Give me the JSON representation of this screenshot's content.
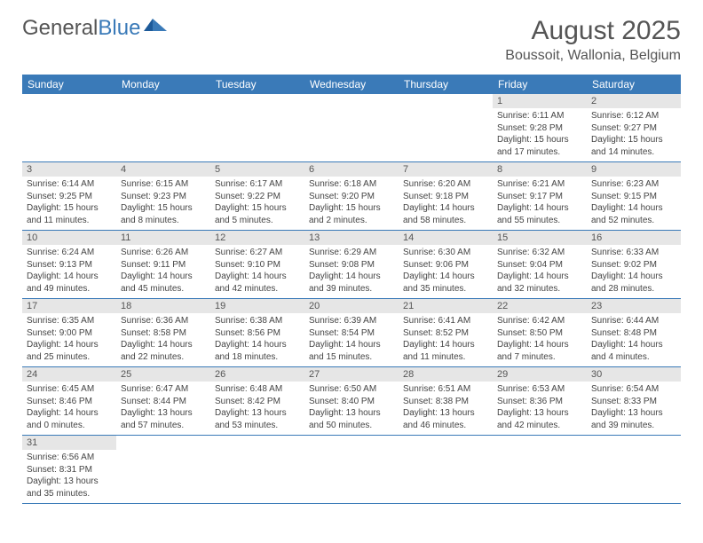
{
  "brand": {
    "part1": "General",
    "part2": "Blue"
  },
  "title": "August 2025",
  "location": "Boussoit, Wallonia, Belgium",
  "colors": {
    "header_bg": "#3a7ab8",
    "daynum_bg": "#e6e6e6",
    "text": "#555555",
    "row_border": "#3a7ab8"
  },
  "typography": {
    "month_title_fontsize": 30,
    "location_fontsize": 16,
    "day_header_fontsize": 12,
    "cell_fontsize": 10
  },
  "day_headers": [
    "Sunday",
    "Monday",
    "Tuesday",
    "Wednesday",
    "Thursday",
    "Friday",
    "Saturday"
  ],
  "weeks": [
    [
      null,
      null,
      null,
      null,
      null,
      {
        "n": "1",
        "sunrise": "Sunrise: 6:11 AM",
        "sunset": "Sunset: 9:28 PM",
        "daylight1": "Daylight: 15 hours",
        "daylight2": "and 17 minutes."
      },
      {
        "n": "2",
        "sunrise": "Sunrise: 6:12 AM",
        "sunset": "Sunset: 9:27 PM",
        "daylight1": "Daylight: 15 hours",
        "daylight2": "and 14 minutes."
      }
    ],
    [
      {
        "n": "3",
        "sunrise": "Sunrise: 6:14 AM",
        "sunset": "Sunset: 9:25 PM",
        "daylight1": "Daylight: 15 hours",
        "daylight2": "and 11 minutes."
      },
      {
        "n": "4",
        "sunrise": "Sunrise: 6:15 AM",
        "sunset": "Sunset: 9:23 PM",
        "daylight1": "Daylight: 15 hours",
        "daylight2": "and 8 minutes."
      },
      {
        "n": "5",
        "sunrise": "Sunrise: 6:17 AM",
        "sunset": "Sunset: 9:22 PM",
        "daylight1": "Daylight: 15 hours",
        "daylight2": "and 5 minutes."
      },
      {
        "n": "6",
        "sunrise": "Sunrise: 6:18 AM",
        "sunset": "Sunset: 9:20 PM",
        "daylight1": "Daylight: 15 hours",
        "daylight2": "and 2 minutes."
      },
      {
        "n": "7",
        "sunrise": "Sunrise: 6:20 AM",
        "sunset": "Sunset: 9:18 PM",
        "daylight1": "Daylight: 14 hours",
        "daylight2": "and 58 minutes."
      },
      {
        "n": "8",
        "sunrise": "Sunrise: 6:21 AM",
        "sunset": "Sunset: 9:17 PM",
        "daylight1": "Daylight: 14 hours",
        "daylight2": "and 55 minutes."
      },
      {
        "n": "9",
        "sunrise": "Sunrise: 6:23 AM",
        "sunset": "Sunset: 9:15 PM",
        "daylight1": "Daylight: 14 hours",
        "daylight2": "and 52 minutes."
      }
    ],
    [
      {
        "n": "10",
        "sunrise": "Sunrise: 6:24 AM",
        "sunset": "Sunset: 9:13 PM",
        "daylight1": "Daylight: 14 hours",
        "daylight2": "and 49 minutes."
      },
      {
        "n": "11",
        "sunrise": "Sunrise: 6:26 AM",
        "sunset": "Sunset: 9:11 PM",
        "daylight1": "Daylight: 14 hours",
        "daylight2": "and 45 minutes."
      },
      {
        "n": "12",
        "sunrise": "Sunrise: 6:27 AM",
        "sunset": "Sunset: 9:10 PM",
        "daylight1": "Daylight: 14 hours",
        "daylight2": "and 42 minutes."
      },
      {
        "n": "13",
        "sunrise": "Sunrise: 6:29 AM",
        "sunset": "Sunset: 9:08 PM",
        "daylight1": "Daylight: 14 hours",
        "daylight2": "and 39 minutes."
      },
      {
        "n": "14",
        "sunrise": "Sunrise: 6:30 AM",
        "sunset": "Sunset: 9:06 PM",
        "daylight1": "Daylight: 14 hours",
        "daylight2": "and 35 minutes."
      },
      {
        "n": "15",
        "sunrise": "Sunrise: 6:32 AM",
        "sunset": "Sunset: 9:04 PM",
        "daylight1": "Daylight: 14 hours",
        "daylight2": "and 32 minutes."
      },
      {
        "n": "16",
        "sunrise": "Sunrise: 6:33 AM",
        "sunset": "Sunset: 9:02 PM",
        "daylight1": "Daylight: 14 hours",
        "daylight2": "and 28 minutes."
      }
    ],
    [
      {
        "n": "17",
        "sunrise": "Sunrise: 6:35 AM",
        "sunset": "Sunset: 9:00 PM",
        "daylight1": "Daylight: 14 hours",
        "daylight2": "and 25 minutes."
      },
      {
        "n": "18",
        "sunrise": "Sunrise: 6:36 AM",
        "sunset": "Sunset: 8:58 PM",
        "daylight1": "Daylight: 14 hours",
        "daylight2": "and 22 minutes."
      },
      {
        "n": "19",
        "sunrise": "Sunrise: 6:38 AM",
        "sunset": "Sunset: 8:56 PM",
        "daylight1": "Daylight: 14 hours",
        "daylight2": "and 18 minutes."
      },
      {
        "n": "20",
        "sunrise": "Sunrise: 6:39 AM",
        "sunset": "Sunset: 8:54 PM",
        "daylight1": "Daylight: 14 hours",
        "daylight2": "and 15 minutes."
      },
      {
        "n": "21",
        "sunrise": "Sunrise: 6:41 AM",
        "sunset": "Sunset: 8:52 PM",
        "daylight1": "Daylight: 14 hours",
        "daylight2": "and 11 minutes."
      },
      {
        "n": "22",
        "sunrise": "Sunrise: 6:42 AM",
        "sunset": "Sunset: 8:50 PM",
        "daylight1": "Daylight: 14 hours",
        "daylight2": "and 7 minutes."
      },
      {
        "n": "23",
        "sunrise": "Sunrise: 6:44 AM",
        "sunset": "Sunset: 8:48 PM",
        "daylight1": "Daylight: 14 hours",
        "daylight2": "and 4 minutes."
      }
    ],
    [
      {
        "n": "24",
        "sunrise": "Sunrise: 6:45 AM",
        "sunset": "Sunset: 8:46 PM",
        "daylight1": "Daylight: 14 hours",
        "daylight2": "and 0 minutes."
      },
      {
        "n": "25",
        "sunrise": "Sunrise: 6:47 AM",
        "sunset": "Sunset: 8:44 PM",
        "daylight1": "Daylight: 13 hours",
        "daylight2": "and 57 minutes."
      },
      {
        "n": "26",
        "sunrise": "Sunrise: 6:48 AM",
        "sunset": "Sunset: 8:42 PM",
        "daylight1": "Daylight: 13 hours",
        "daylight2": "and 53 minutes."
      },
      {
        "n": "27",
        "sunrise": "Sunrise: 6:50 AM",
        "sunset": "Sunset: 8:40 PM",
        "daylight1": "Daylight: 13 hours",
        "daylight2": "and 50 minutes."
      },
      {
        "n": "28",
        "sunrise": "Sunrise: 6:51 AM",
        "sunset": "Sunset: 8:38 PM",
        "daylight1": "Daylight: 13 hours",
        "daylight2": "and 46 minutes."
      },
      {
        "n": "29",
        "sunrise": "Sunrise: 6:53 AM",
        "sunset": "Sunset: 8:36 PM",
        "daylight1": "Daylight: 13 hours",
        "daylight2": "and 42 minutes."
      },
      {
        "n": "30",
        "sunrise": "Sunrise: 6:54 AM",
        "sunset": "Sunset: 8:33 PM",
        "daylight1": "Daylight: 13 hours",
        "daylight2": "and 39 minutes."
      }
    ],
    [
      {
        "n": "31",
        "sunrise": "Sunrise: 6:56 AM",
        "sunset": "Sunset: 8:31 PM",
        "daylight1": "Daylight: 13 hours",
        "daylight2": "and 35 minutes."
      },
      null,
      null,
      null,
      null,
      null,
      null
    ]
  ]
}
